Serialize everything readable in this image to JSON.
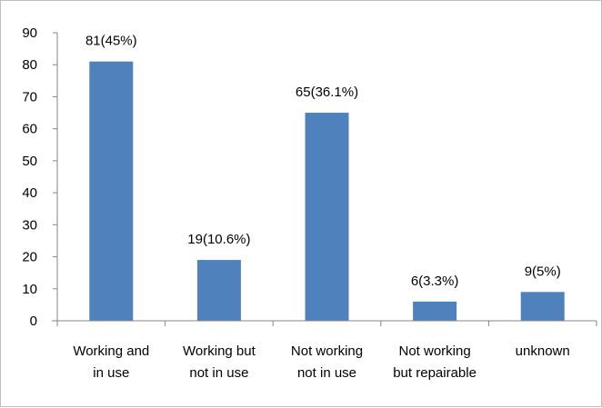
{
  "chart_data": {
    "type": "bar",
    "categories": [
      [
        "Working and",
        "in use"
      ],
      [
        "Working but",
        "not in use"
      ],
      [
        "Not working",
        "not in use"
      ],
      [
        "Not working",
        "but repairable"
      ],
      [
        "unknown"
      ]
    ],
    "values": [
      81,
      19,
      65,
      6,
      9
    ],
    "data_labels": [
      "81(45%)",
      "19(10.6%)",
      "65(36.1%)",
      "6(3.3%)",
      "9(5%)"
    ],
    "ylim": [
      0,
      90
    ],
    "yticks": [
      0,
      10,
      20,
      30,
      40,
      50,
      60,
      70,
      80,
      90
    ],
    "title": "",
    "xlabel": "",
    "ylabel": "",
    "grid": false,
    "bar_color": "#4f81bd",
    "axis_color": "#868686"
  }
}
